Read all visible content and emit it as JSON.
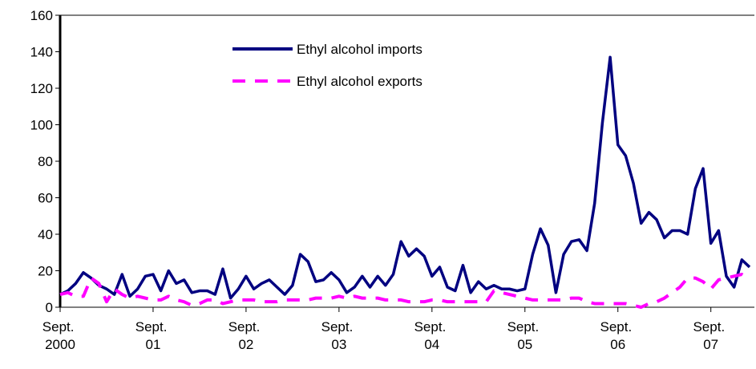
{
  "chart_data": {
    "type": "line",
    "categories": [
      "Sept. 2000",
      null,
      null,
      null,
      null,
      null,
      null,
      null,
      null,
      null,
      null,
      null,
      "Sept. 01",
      null,
      null,
      null,
      null,
      null,
      null,
      null,
      null,
      null,
      null,
      null,
      "Sept. 02",
      null,
      null,
      null,
      null,
      null,
      null,
      null,
      null,
      null,
      null,
      null,
      "Sept. 03",
      null,
      null,
      null,
      null,
      null,
      null,
      null,
      null,
      null,
      null,
      null,
      "Sept. 04",
      null,
      null,
      null,
      null,
      null,
      null,
      null,
      null,
      null,
      null,
      null,
      "Sept. 05",
      null,
      null,
      null,
      null,
      null,
      null,
      null,
      null,
      null,
      null,
      null,
      "Sept. 06",
      null,
      null,
      null,
      null,
      null,
      null,
      null,
      null,
      null,
      null,
      null,
      "Sept. 07",
      null,
      null,
      null,
      null,
      null
    ],
    "series": [
      {
        "name": "Ethyl alcohol imports",
        "color": "#000080",
        "dash": false,
        "values": [
          7,
          9,
          13,
          19,
          16,
          12,
          10,
          7,
          18,
          6,
          10,
          17,
          18,
          9,
          20,
          13,
          15,
          8,
          9,
          9,
          7,
          21,
          5,
          10,
          17,
          10,
          13,
          15,
          11,
          7,
          12,
          29,
          25,
          14,
          15,
          19,
          15,
          8,
          11,
          17,
          11,
          17,
          12,
          18,
          36,
          28,
          32,
          28,
          17,
          22,
          11,
          9,
          23,
          8,
          14,
          10,
          12,
          10,
          10,
          9,
          10,
          29,
          43,
          34,
          8,
          29,
          36,
          37,
          31,
          57,
          101,
          137,
          89,
          83,
          68,
          46,
          52,
          48,
          38,
          42,
          42,
          40,
          65,
          76,
          35,
          42,
          17,
          11,
          26,
          22
        ]
      },
      {
        "name": "Ethyl alcohol exports",
        "color": "#ff00ff",
        "dash": true,
        "values": [
          7,
          8,
          6,
          6,
          16,
          13,
          3,
          10,
          7,
          5,
          6,
          5,
          4,
          4,
          6,
          4,
          3,
          1,
          2,
          4,
          4,
          2,
          3,
          4,
          4,
          4,
          3,
          3,
          3,
          4,
          4,
          4,
          4,
          5,
          5,
          5,
          6,
          5,
          6,
          5,
          5,
          5,
          4,
          4,
          4,
          3,
          3,
          3,
          4,
          4,
          3,
          3,
          3,
          3,
          3,
          3,
          9,
          8,
          7,
          6,
          5,
          4,
          4,
          4,
          4,
          4,
          5,
          5,
          3,
          2,
          2,
          2,
          2,
          2,
          1,
          0,
          2,
          3,
          5,
          8,
          11,
          16,
          16,
          14,
          10,
          15,
          16,
          17,
          18,
          15
        ]
      }
    ],
    "ylim": [
      0,
      160
    ],
    "yticks": [
      0,
      20,
      40,
      60,
      80,
      100,
      120,
      140,
      160
    ]
  }
}
